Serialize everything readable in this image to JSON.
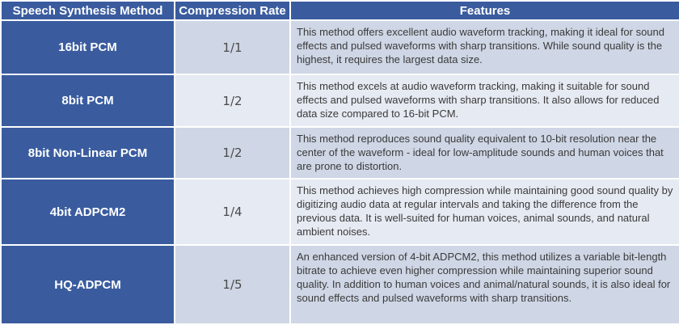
{
  "headers": {
    "method": "Speech Synthesis Method",
    "rate": "Compression Rate",
    "features": "Features"
  },
  "rows": [
    {
      "method": "16bit PCM",
      "rate": "1/1",
      "features": "This method offers excellent audio waveform tracking, making it ideal for sound effects and pulsed waveforms with sharp transitions. While sound quality is the highest, it requires the largest data size."
    },
    {
      "method": "8bit PCM",
      "rate": "1/2",
      "features": "This method excels at audio waveform tracking, making it suitable for sound effects and pulsed waveforms with sharp transitions. It also allows for reduced data size compared to 16-bit PCM."
    },
    {
      "method": "8bit Non-Linear PCM",
      "rate": "1/2",
      "features": "This method reproduces sound quality equivalent to 10-bit resolution near the center of the waveform - ideal for low-amplitude sounds and human voices that are prone to distortion."
    },
    {
      "method": "4bit ADPCM2",
      "rate": "1/4",
      "features": "This method achieves high compression while maintaining good sound quality by digitizing audio data at regular intervals and taking the difference from the previous data. It is well-suited for human voices, animal sounds, and natural ambient noises."
    },
    {
      "method": "HQ-ADPCM",
      "rate": "1/5",
      "features": "An enhanced version of 4-bit ADPCM2, this method utilizes a variable bit-length bitrate to achieve even higher compression while maintaining superior sound quality. In addition to human voices and animal/natural sounds, it is also ideal for sound effects and pulsed waveforms with sharp transitions."
    }
  ]
}
